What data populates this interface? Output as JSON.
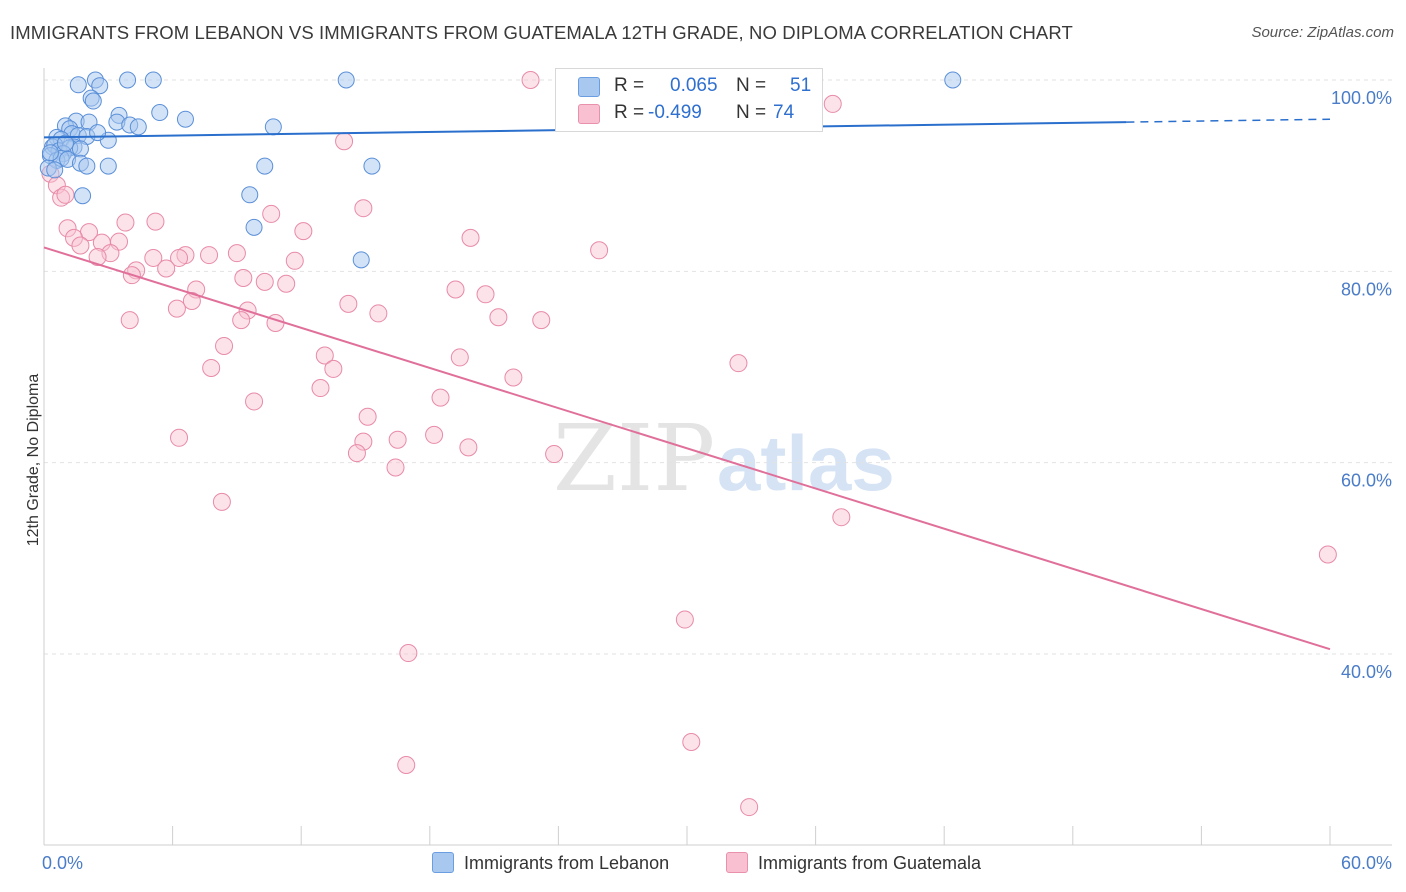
{
  "header": {
    "title": "IMMIGRANTS FROM LEBANON VS IMMIGRANTS FROM GUATEMALA 12TH GRADE, NO DIPLOMA CORRELATION CHART",
    "source": "Source: ZipAtlas.com"
  },
  "watermark": {
    "zip": "ZIP",
    "atlas": "atlas"
  },
  "legend": {
    "rows": [
      {
        "r_label": "R =",
        "r_value": "0.065",
        "n_label": "N =",
        "n_value": "51",
        "color": "#a8c8f0",
        "border": "#6a9ee0"
      },
      {
        "r_label": "R =",
        "r_value": "-0.499",
        "n_label": "N =",
        "n_value": "74",
        "color": "#f8c0d0",
        "border": "#e890ac"
      }
    ]
  },
  "bottom_legend": {
    "lebanon": "Immigrants from Lebanon",
    "guatemala": "Immigrants from Guatemala"
  },
  "chart_data": {
    "type": "scatter",
    "title": "IMMIGRANTS FROM LEBANON VS IMMIGRANTS FROM GUATEMALA 12TH GRADE, NO DIPLOMA CORRELATION CHART",
    "xlabel": "",
    "ylabel": "12th Grade, No Diploma",
    "xlim": [
      0,
      60
    ],
    "ylim": [
      20,
      102
    ],
    "x_tick_labels": [
      "0.0%",
      "60.0%"
    ],
    "y_ticks": [
      {
        "value": 100,
        "label": "100.0%"
      },
      {
        "value": 80,
        "label": "80.0%"
      },
      {
        "value": 60,
        "label": "60.0%"
      },
      {
        "value": 40,
        "label": "40.0%"
      }
    ],
    "gridlines": [
      100,
      80,
      60,
      40
    ],
    "colors": {
      "lebanon_fill": "#a8c8f0",
      "lebanon_stroke": "#5a8fd8",
      "lebanon_line": "#2a6fcc",
      "guatemala_fill": "#f8c0d0",
      "guatemala_stroke": "#e88aa8",
      "guatemala_line": "#e0709a"
    },
    "series": [
      {
        "name": "Immigrants from Lebanon",
        "trend": {
          "x0": 0,
          "y0": 94.0,
          "x1": 50.5,
          "y1": 95.6,
          "dash_to_x": 60,
          "dash_to_y": 95.9
        },
        "points": [
          [
            2.4,
            100
          ],
          [
            3.9,
            100
          ],
          [
            5.1,
            100
          ],
          [
            14.1,
            100
          ],
          [
            42.4,
            100
          ],
          [
            1.6,
            99.5
          ],
          [
            2.6,
            99.4
          ],
          [
            2.2,
            98.1
          ],
          [
            2.3,
            97.8
          ],
          [
            3.5,
            96.3
          ],
          [
            5.4,
            96.6
          ],
          [
            6.6,
            95.9
          ],
          [
            1.5,
            95.7
          ],
          [
            1.0,
            95.2
          ],
          [
            2.1,
            95.6
          ],
          [
            3.4,
            95.6
          ],
          [
            4.0,
            95.3
          ],
          [
            4.4,
            95.1
          ],
          [
            10.7,
            95.1
          ],
          [
            1.2,
            94.9
          ],
          [
            1.3,
            94.4
          ],
          [
            1.6,
            94.2
          ],
          [
            2.0,
            94.1
          ],
          [
            0.6,
            94.0
          ],
          [
            0.8,
            93.8
          ],
          [
            3.0,
            93.7
          ],
          [
            0.4,
            93.0
          ],
          [
            0.5,
            93.2
          ],
          [
            1.4,
            93.0
          ],
          [
            0.7,
            92.6
          ],
          [
            1.2,
            92.9
          ],
          [
            1.7,
            92.8
          ],
          [
            0.9,
            92.3
          ],
          [
            0.3,
            92.1
          ],
          [
            0.6,
            91.6
          ],
          [
            0.8,
            91.8
          ],
          [
            1.1,
            91.7
          ],
          [
            1.7,
            91.3
          ],
          [
            2.0,
            91.0
          ],
          [
            3.0,
            91.0
          ],
          [
            10.3,
            91.0
          ],
          [
            15.3,
            91.0
          ],
          [
            0.2,
            90.8
          ],
          [
            0.5,
            90.6
          ],
          [
            1.8,
            87.9
          ],
          [
            9.6,
            88.0
          ],
          [
            9.8,
            84.6
          ],
          [
            14.8,
            81.2
          ],
          [
            0.3,
            92.4
          ],
          [
            1.0,
            93.4
          ],
          [
            2.5,
            94.5
          ]
        ]
      },
      {
        "name": "Immigrants from Guatemala",
        "trend": {
          "x0": 0,
          "y0": 82.5,
          "x1": 60,
          "y1": 40.5
        },
        "points": [
          [
            0.3,
            90.2
          ],
          [
            0.6,
            89.0
          ],
          [
            0.8,
            87.7
          ],
          [
            22.7,
            100
          ],
          [
            36.8,
            97.5
          ],
          [
            14.0,
            93.6
          ],
          [
            14.9,
            86.6
          ],
          [
            10.6,
            86.0
          ],
          [
            3.8,
            85.1
          ],
          [
            5.2,
            85.2
          ],
          [
            1.1,
            84.5
          ],
          [
            2.1,
            84.1
          ],
          [
            12.1,
            84.2
          ],
          [
            1.4,
            83.5
          ],
          [
            2.7,
            83.0
          ],
          [
            3.5,
            83.1
          ],
          [
            1.7,
            82.7
          ],
          [
            19.9,
            83.5
          ],
          [
            25.9,
            82.2
          ],
          [
            6.6,
            81.7
          ],
          [
            6.3,
            81.4
          ],
          [
            7.7,
            81.7
          ],
          [
            9.0,
            81.9
          ],
          [
            3.1,
            81.9
          ],
          [
            5.1,
            81.4
          ],
          [
            2.5,
            81.5
          ],
          [
            11.7,
            81.1
          ],
          [
            4.3,
            80.1
          ],
          [
            5.7,
            80.3
          ],
          [
            9.3,
            79.3
          ],
          [
            4.1,
            79.6
          ],
          [
            10.3,
            78.9
          ],
          [
            11.3,
            78.7
          ],
          [
            7.1,
            78.1
          ],
          [
            19.2,
            78.1
          ],
          [
            20.6,
            77.6
          ],
          [
            6.9,
            76.9
          ],
          [
            14.2,
            76.6
          ],
          [
            6.2,
            76.1
          ],
          [
            9.5,
            75.9
          ],
          [
            15.6,
            75.6
          ],
          [
            4.0,
            74.9
          ],
          [
            9.2,
            74.9
          ],
          [
            21.2,
            75.2
          ],
          [
            23.2,
            74.9
          ],
          [
            10.8,
            74.6
          ],
          [
            8.4,
            72.2
          ],
          [
            13.1,
            71.2
          ],
          [
            19.4,
            71.0
          ],
          [
            32.4,
            70.4
          ],
          [
            7.8,
            69.9
          ],
          [
            13.5,
            69.8
          ],
          [
            21.9,
            68.9
          ],
          [
            12.9,
            67.8
          ],
          [
            18.5,
            66.8
          ],
          [
            9.8,
            66.4
          ],
          [
            15.1,
            64.8
          ],
          [
            18.2,
            62.9
          ],
          [
            16.5,
            62.4
          ],
          [
            14.9,
            62.2
          ],
          [
            6.3,
            62.6
          ],
          [
            19.8,
            61.6
          ],
          [
            14.6,
            61.0
          ],
          [
            23.8,
            60.9
          ],
          [
            16.4,
            59.5
          ],
          [
            8.3,
            55.9
          ],
          [
            37.2,
            54.3
          ],
          [
            59.9,
            50.4
          ],
          [
            29.9,
            43.6
          ],
          [
            17.0,
            40.1
          ],
          [
            30.2,
            30.8
          ],
          [
            16.9,
            28.4
          ],
          [
            32.9,
            24.0
          ],
          [
            1.0,
            88.0
          ]
        ]
      }
    ]
  }
}
